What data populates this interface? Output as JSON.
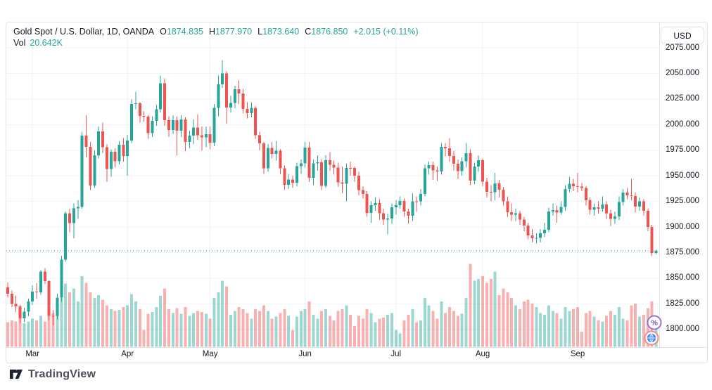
{
  "legend": {
    "title": "Gold Spot / U.S. Dollar, 1D, OANDA",
    "open_label": "O",
    "open": "1874.835",
    "high_label": "H",
    "high": "1877.970",
    "low_label": "L",
    "low": "1873.640",
    "close_label": "C",
    "close": "1876.850",
    "change": "+2.015 (+0.11%)",
    "volume_label": "Vol",
    "volume": "20.642K"
  },
  "price_axis": {
    "currency_button": "USD",
    "labels": [
      "2075.000",
      "2050.000",
      "2025.000",
      "2000.000",
      "1975.000",
      "1950.000",
      "1925.000",
      "1900.000",
      "1875.000",
      "1850.000",
      "1825.000",
      "1800.000"
    ],
    "top_price": 2075,
    "step": 25
  },
  "time_axis": {
    "months": [
      {
        "label": "Mar",
        "index": 6
      },
      {
        "label": "Apr",
        "index": 29
      },
      {
        "label": "May",
        "index": 49
      },
      {
        "label": "Jun",
        "index": 72
      },
      {
        "label": "Jul",
        "index": 94
      },
      {
        "label": "Aug",
        "index": 115
      },
      {
        "label": "Sep",
        "index": 138
      }
    ]
  },
  "badges": {
    "percent_glyph": "%"
  },
  "attribution": {
    "brand": "TradingView"
  },
  "colors": {
    "up": "#26a69a",
    "down": "#ef5350",
    "volume_up": "rgba(38,166,154,0.45)",
    "volume_down": "rgba(239,83,80,0.45)",
    "grid": "#f0f3fa",
    "axis_border": "#e0e3eb",
    "text": "#131722",
    "last_price_line": "#26a69a",
    "badge_percent_ring": "#9575cd",
    "badge_percent_glyph": "#7e57c2",
    "badge_globe_ring": "#f28b82",
    "badge_globe_fill": "#4185f4"
  },
  "chart_data": {
    "type": "candlestick",
    "title": "Gold Spot / U.S. Dollar, 1D, OANDA",
    "symbol": "Gold Spot / U.S. Dollar",
    "interval": "1D",
    "exchange": "OANDA",
    "legend_position": "top-left",
    "grid": true,
    "y_axis_range": [
      1789,
      2090
    ],
    "y_tick_step": 25,
    "x_tick_labels": [
      "Mar",
      "Apr",
      "May",
      "Jun",
      "Jul",
      "Aug",
      "Sep"
    ],
    "last_close": 1876.85,
    "last_change": 2.015,
    "last_change_pct": 0.11,
    "last_volume_K": 20.642,
    "series_format": [
      "open",
      "high",
      "low",
      "close",
      "volume_K"
    ],
    "candles": [
      [
        1841,
        1846,
        1831,
        1834.8,
        26
      ],
      [
        1834.8,
        1838,
        1822,
        1825.1,
        28
      ],
      [
        1825.1,
        1833,
        1817,
        1822.4,
        27
      ],
      [
        1822.4,
        1824,
        1806,
        1811,
        32
      ],
      [
        1811,
        1821,
        1807,
        1817.3,
        25
      ],
      [
        1817.3,
        1830,
        1813,
        1827.2,
        27
      ],
      [
        1827.2,
        1843,
        1824,
        1836.9,
        30
      ],
      [
        1836.9,
        1845,
        1830,
        1836.4,
        28
      ],
      [
        1836.4,
        1858,
        1834,
        1856.5,
        33
      ],
      [
        1856.5,
        1860,
        1844,
        1847.1,
        27
      ],
      [
        1847.1,
        1848,
        1809,
        1813.4,
        41
      ],
      [
        1813.4,
        1819,
        1804,
        1813.3,
        36
      ],
      [
        1813.3,
        1835,
        1810,
        1831.2,
        33
      ],
      [
        1831.2,
        1872,
        1827,
        1868.3,
        52
      ],
      [
        1868.3,
        1915,
        1866,
        1913.5,
        67
      ],
      [
        1913.5,
        1918,
        1895,
        1903.8,
        58
      ],
      [
        1903.8,
        1923,
        1889,
        1918.2,
        62
      ],
      [
        1918.2,
        1926,
        1908,
        1919.6,
        48
      ],
      [
        1919.6,
        1993,
        1918,
        1989.3,
        75
      ],
      [
        1989.3,
        2009,
        1968,
        1978.4,
        68
      ],
      [
        1978.4,
        1983,
        1936,
        1940.7,
        58
      ],
      [
        1940.7,
        1975,
        1938,
        1970.1,
        52
      ],
      [
        1970.1,
        1998,
        1967,
        1993.2,
        55
      ],
      [
        1993.2,
        2002,
        1972,
        1977.9,
        50
      ],
      [
        1977.9,
        1981,
        1944,
        1956.6,
        44
      ],
      [
        1956.6,
        1976,
        1949,
        1973.4,
        40
      ],
      [
        1973.4,
        1977,
        1958,
        1964.3,
        38
      ],
      [
        1964.3,
        1984,
        1961,
        1980.2,
        39
      ],
      [
        1980.2,
        1987,
        1964,
        1969.3,
        42
      ],
      [
        1969.3,
        1990,
        1950,
        1984.5,
        44
      ],
      [
        1984.5,
        2025,
        1982,
        2020.1,
        56
      ],
      [
        2020.1,
        2032,
        2015,
        2020.7,
        48
      ],
      [
        2020.7,
        2022,
        2002,
        2008.4,
        40
      ],
      [
        2008.4,
        2013,
        2003,
        2007.6,
        18
      ],
      [
        2007.6,
        2009,
        1986,
        1991.5,
        35
      ],
      [
        1991.5,
        2008,
        1988,
        2003.7,
        37
      ],
      [
        2003.7,
        2019,
        1999,
        2014.8,
        42
      ],
      [
        2014.8,
        2048,
        2012,
        2040.2,
        54
      ],
      [
        2040.2,
        2045,
        1999,
        2004.2,
        62
      ],
      [
        2004.2,
        2008,
        1988,
        1994.6,
        40
      ],
      [
        1994.6,
        2009,
        1991,
        2004.5,
        36
      ],
      [
        2004.5,
        2008,
        1970,
        1994.1,
        41
      ],
      [
        1994.1,
        2009,
        1988,
        2004.9,
        35
      ],
      [
        2004.9,
        2007,
        1974,
        1983.1,
        42
      ],
      [
        1983.1,
        1994,
        1977,
        1989.4,
        33
      ],
      [
        1989.4,
        2005,
        1981,
        1997.2,
        36
      ],
      [
        1997.2,
        2010,
        1985,
        1989.7,
        38
      ],
      [
        1989.7,
        1998,
        1975,
        1987.5,
        37
      ],
      [
        1987.5,
        1998,
        1978,
        1990.5,
        35
      ],
      [
        1990.5,
        1998,
        1976,
        1982.4,
        30
      ],
      [
        1982.4,
        2020,
        1979,
        2016.4,
        52
      ],
      [
        2016.4,
        2048,
        2008,
        2039.3,
        58
      ],
      [
        2039.3,
        2063,
        2036,
        2050.1,
        70
      ],
      [
        2050.1,
        2052,
        2001,
        2016.6,
        64
      ],
      [
        2016.6,
        2028,
        2012,
        2021.2,
        34
      ],
      [
        2021.2,
        2038,
        2016,
        2034.4,
        38
      ],
      [
        2034.4,
        2043,
        2020,
        2030.3,
        42
      ],
      [
        2030.3,
        2035,
        2011,
        2015.2,
        40
      ],
      [
        2015.2,
        2022,
        2006,
        2011.1,
        36
      ],
      [
        2011.1,
        2022,
        2007,
        2016.5,
        30
      ],
      [
        2016.5,
        2018,
        1986,
        1989.6,
        40
      ],
      [
        1989.6,
        1993,
        1975,
        1981.8,
        38
      ],
      [
        1981.8,
        1983,
        1952,
        1957.3,
        44
      ],
      [
        1957.3,
        1981,
        1954,
        1977.4,
        38
      ],
      [
        1977.4,
        1983,
        1967,
        1971.3,
        30
      ],
      [
        1971.3,
        1984,
        1965,
        1974.6,
        32
      ],
      [
        1974.6,
        1976,
        1952,
        1957.2,
        36
      ],
      [
        1957.2,
        1960,
        1936,
        1941.1,
        40
      ],
      [
        1941.1,
        1952,
        1937,
        1946.2,
        33
      ],
      [
        1946.2,
        1950,
        1938,
        1943.4,
        18
      ],
      [
        1943.4,
        1963,
        1940,
        1959.3,
        32
      ],
      [
        1959.3,
        1966,
        1952,
        1962.2,
        38
      ],
      [
        1962.2,
        1983,
        1958,
        1977.6,
        40
      ],
      [
        1977.6,
        1983,
        1944,
        1948,
        48
      ],
      [
        1948,
        1966,
        1941,
        1962.1,
        34
      ],
      [
        1962.1,
        1970,
        1955,
        1963.3,
        30
      ],
      [
        1963.3,
        1966,
        1936,
        1940.2,
        38
      ],
      [
        1940.2,
        1970,
        1938,
        1965.4,
        40
      ],
      [
        1965.4,
        1973,
        1955,
        1960.8,
        33
      ],
      [
        1960.8,
        1965,
        1951,
        1957.9,
        28
      ],
      [
        1957.9,
        1963,
        1939,
        1943.6,
        38
      ],
      [
        1943.6,
        1959,
        1933,
        1942.3,
        40
      ],
      [
        1942.3,
        1962,
        1925,
        1957.8,
        44
      ],
      [
        1957.8,
        1964,
        1950,
        1957.6,
        34
      ],
      [
        1957.6,
        1959,
        1944,
        1950.1,
        22
      ],
      [
        1950.1,
        1954,
        1931,
        1936,
        33
      ],
      [
        1936,
        1940,
        1928,
        1932.3,
        30
      ],
      [
        1932.3,
        1935,
        1910,
        1913.8,
        40
      ],
      [
        1913.8,
        1925,
        1904,
        1921.2,
        36
      ],
      [
        1921.2,
        1929,
        1916,
        1923.4,
        26
      ],
      [
        1923.4,
        1927,
        1907,
        1913.4,
        30
      ],
      [
        1913.4,
        1918,
        1902,
        1907.1,
        31
      ],
      [
        1907.1,
        1913,
        1893,
        1908.2,
        34
      ],
      [
        1908.2,
        1923,
        1903,
        1919.4,
        36
      ],
      [
        1919.4,
        1926,
        1912,
        1921.3,
        18
      ],
      [
        1921.3,
        1930,
        1918,
        1925.5,
        14
      ],
      [
        1925.5,
        1928,
        1910,
        1915.2,
        28
      ],
      [
        1915.2,
        1918,
        1903,
        1911,
        34
      ],
      [
        1911,
        1933,
        1906,
        1925.1,
        40
      ],
      [
        1925.1,
        1930,
        1915,
        1925,
        26
      ],
      [
        1925,
        1937,
        1921,
        1932.4,
        28
      ],
      [
        1932.4,
        1961,
        1930,
        1957.3,
        52
      ],
      [
        1957.3,
        1964,
        1951,
        1960.4,
        44
      ],
      [
        1960.4,
        1964,
        1946,
        1955.2,
        38
      ],
      [
        1955.2,
        1959,
        1945,
        1954.4,
        30
      ],
      [
        1954.4,
        1982,
        1951,
        1978.3,
        48
      ],
      [
        1978.3,
        1982,
        1969,
        1977,
        36
      ],
      [
        1977,
        1987,
        1964,
        1969.3,
        42
      ],
      [
        1969.3,
        1974,
        1955,
        1961.9,
        38
      ],
      [
        1961.9,
        1966,
        1947,
        1954.5,
        33
      ],
      [
        1954.5,
        1968,
        1950,
        1964.3,
        35
      ],
      [
        1964.3,
        1982,
        1958,
        1972.2,
        52
      ],
      [
        1972.2,
        1976,
        1941,
        1945.4,
        88
      ],
      [
        1945.4,
        1963,
        1942,
        1959.2,
        70
      ],
      [
        1959.2,
        1970,
        1954,
        1965.1,
        72
      ],
      [
        1965.1,
        1967,
        1940,
        1944.2,
        75
      ],
      [
        1944.2,
        1948,
        1929,
        1934.4,
        68
      ],
      [
        1934.4,
        1941,
        1925,
        1934.1,
        72
      ],
      [
        1934.1,
        1953,
        1926,
        1942.6,
        80
      ],
      [
        1942.6,
        1946,
        1929,
        1936.3,
        55
      ],
      [
        1936.3,
        1939,
        1921,
        1925,
        62
      ],
      [
        1925,
        1930,
        1910,
        1914.3,
        58
      ],
      [
        1914.3,
        1923,
        1906,
        1912.2,
        52
      ],
      [
        1912.2,
        1918,
        1906,
        1913.4,
        44
      ],
      [
        1913.4,
        1916,
        1902,
        1907.2,
        40
      ],
      [
        1907.2,
        1910,
        1896,
        1901.4,
        48
      ],
      [
        1901.4,
        1904,
        1888,
        1891.8,
        50
      ],
      [
        1891.8,
        1898,
        1885,
        1889.2,
        46
      ],
      [
        1889.2,
        1894,
        1884,
        1889.4,
        42
      ],
      [
        1889.4,
        1898,
        1885,
        1894,
        36
      ],
      [
        1894,
        1904,
        1890,
        1897.3,
        34
      ],
      [
        1897.3,
        1919,
        1895,
        1915.2,
        44
      ],
      [
        1915.2,
        1923,
        1911,
        1916.4,
        38
      ],
      [
        1916.4,
        1921,
        1904,
        1914.1,
        36
      ],
      [
        1914.1,
        1925,
        1912,
        1919.5,
        30
      ],
      [
        1919.5,
        1941,
        1916,
        1937.1,
        42
      ],
      [
        1937.1,
        1949,
        1934,
        1942.3,
        38
      ],
      [
        1942.3,
        1947,
        1935,
        1940,
        40
      ],
      [
        1940,
        1953,
        1934,
        1939.6,
        42
      ],
      [
        1939.6,
        1943,
        1935,
        1938.1,
        16
      ],
      [
        1938.1,
        1940,
        1921,
        1926,
        36
      ],
      [
        1926,
        1929,
        1912,
        1916.9,
        38
      ],
      [
        1916.9,
        1923,
        1911,
        1919.2,
        32
      ],
      [
        1919.2,
        1925,
        1913,
        1918,
        28
      ],
      [
        1918,
        1930,
        1915,
        1922.1,
        27
      ],
      [
        1922.1,
        1925,
        1908,
        1913.3,
        33
      ],
      [
        1913.3,
        1917,
        1901,
        1908,
        38
      ],
      [
        1908,
        1915,
        1903,
        1910.4,
        34
      ],
      [
        1910.4,
        1930,
        1907,
        1924.3,
        42
      ],
      [
        1924.3,
        1937,
        1921,
        1933.8,
        30
      ],
      [
        1933.8,
        1938,
        1927,
        1931,
        28
      ],
      [
        1931,
        1947,
        1926,
        1930.3,
        44
      ],
      [
        1930.3,
        1934,
        1914,
        1920,
        46
      ],
      [
        1920,
        1929,
        1916,
        1925.2,
        32
      ],
      [
        1925.2,
        1927,
        1911,
        1915.8,
        34
      ],
      [
        1915.8,
        1918,
        1896,
        1900.2,
        41
      ],
      [
        1900.2,
        1902,
        1872,
        1874.8,
        48
      ],
      [
        1874.835,
        1877.97,
        1873.64,
        1876.85,
        20.642
      ]
    ]
  }
}
